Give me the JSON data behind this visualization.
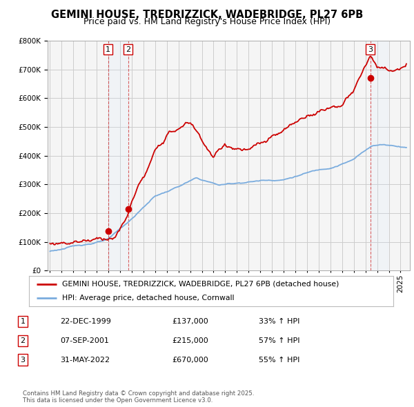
{
  "title_line1": "GEMINI HOUSE, TREDRIZZICK, WADEBRIDGE, PL27 6PB",
  "title_line2": "Price paid vs. HM Land Registry's House Price Index (HPI)",
  "background_color": "#ffffff",
  "plot_bg_color": "#f5f5f5",
  "grid_color": "#cccccc",
  "hpi_color": "#7aacde",
  "price_color": "#cc0000",
  "shade_color": "#ddeeff",
  "purchases": [
    {
      "date_year": 1999.97,
      "price": 137000,
      "label": "1"
    },
    {
      "date_year": 2001.68,
      "price": 215000,
      "label": "2"
    },
    {
      "date_year": 2022.42,
      "price": 670000,
      "label": "3"
    }
  ],
  "legend_entries": [
    "GEMINI HOUSE, TREDRIZZICK, WADEBRIDGE, PL27 6PB (detached house)",
    "HPI: Average price, detached house, Cornwall"
  ],
  "table_rows": [
    {
      "num": "1",
      "date": "22-DEC-1999",
      "price": "£137,000",
      "change": "33% ↑ HPI"
    },
    {
      "num": "2",
      "date": "07-SEP-2001",
      "price": "£215,000",
      "change": "57% ↑ HPI"
    },
    {
      "num": "3",
      "date": "31-MAY-2022",
      "price": "£670,000",
      "change": "55% ↑ HPI"
    }
  ],
  "footer": "Contains HM Land Registry data © Crown copyright and database right 2025.\nThis data is licensed under the Open Government Licence v3.0.",
  "ylim": [
    0,
    800000
  ],
  "xlim_start": 1994.8,
  "xlim_end": 2025.8
}
